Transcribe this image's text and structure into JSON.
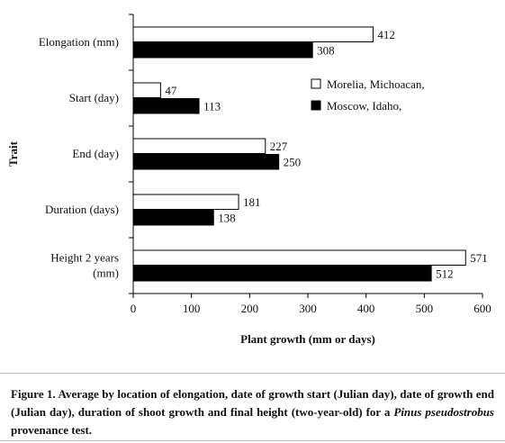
{
  "chart_data": {
    "type": "bar",
    "orientation": "horizontal",
    "categories": [
      "Elongation (mm)",
      "Start (day)",
      "End (day)",
      "Duration (days)",
      "Height 2 years (mm)"
    ],
    "series": [
      {
        "name": "Morelia, Michoacan,",
        "color": "#ffffff",
        "values": [
          412,
          47,
          227,
          181,
          571
        ]
      },
      {
        "name": "Moscow, Idaho,",
        "color": "#000000",
        "values": [
          308,
          113,
          250,
          138,
          512
        ]
      }
    ],
    "xlabel": "Plant growth (mm or days)",
    "ylabel": "Trait",
    "xlim": [
      0,
      600
    ],
    "xticks": [
      0,
      100,
      200,
      300,
      400,
      500,
      600
    ],
    "grid": false,
    "legend_position": "right"
  },
  "caption": {
    "prefix": "Figure 1. Average by location of elongation, date of growth start (Julian day), date of growth end (Julian day), duration of shoot growth and final height (two-year-old) for a ",
    "species": "Pinus pseudostrobus",
    "suffix": " provenance test."
  }
}
